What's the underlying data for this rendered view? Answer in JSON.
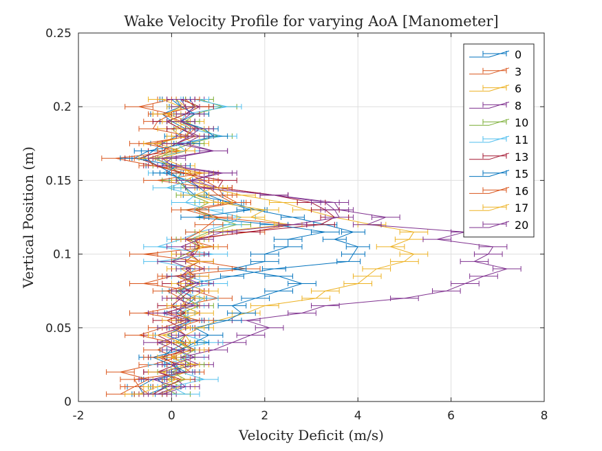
{
  "chart_data": {
    "type": "line",
    "title": "Wake Velocity Profile for varying AoA [Manometer]",
    "xlabel": "Velocity Deficit (m/s)",
    "ylabel": "Vertical Position (m)",
    "xlim": [
      -2,
      8
    ],
    "ylim": [
      0,
      0.25
    ],
    "xticks": [
      "-2",
      "0",
      "2",
      "4",
      "6",
      "8"
    ],
    "yticks": [
      "0",
      "0.05",
      "0.1",
      "0.15",
      "0.2",
      "0.25"
    ],
    "grid": true,
    "legend_position": "top-right",
    "error_bars": "horizontal",
    "y": [
      0.005,
      0.01,
      0.015,
      0.02,
      0.025,
      0.03,
      0.035,
      0.04,
      0.045,
      0.05,
      0.055,
      0.06,
      0.065,
      0.07,
      0.075,
      0.08,
      0.085,
      0.09,
      0.095,
      0.1,
      0.105,
      0.11,
      0.115,
      0.12,
      0.125,
      0.13,
      0.135,
      0.14,
      0.145,
      0.15,
      0.155,
      0.16,
      0.165,
      0.17,
      0.175,
      0.18,
      0.185,
      0.19,
      0.195,
      0.2,
      0.205
    ],
    "series": [
      {
        "name": "0",
        "color": "#0072BD",
        "err": 0.25,
        "x": [
          -0.6,
          -0.7,
          -0.4,
          0.2,
          0.1,
          -0.2,
          0.0,
          0.3,
          -0.1,
          0.2,
          0.4,
          0.1,
          0.3,
          0.5,
          0.2,
          0.4,
          1.3,
          2.2,
          3.8,
          3.9,
          4.0,
          3.5,
          3.9,
          3.3,
          2.6,
          1.8,
          1.3,
          0.5,
          0.3,
          0.2,
          0.0,
          -0.3,
          -0.6,
          -0.4,
          -0.2,
          0.1,
          0.3,
          0.0,
          -0.2,
          0.2,
          0.0
        ]
      },
      {
        "name": "3",
        "color": "#D95319",
        "err": 0.3,
        "x": [
          -1.1,
          -0.8,
          -0.5,
          -1.1,
          -0.4,
          0.1,
          -0.3,
          0.0,
          -0.7,
          -0.2,
          0.3,
          -0.6,
          0.2,
          1.0,
          0.5,
          -0.6,
          0.0,
          1.6,
          0.6,
          -0.6,
          0.9,
          0.3,
          1.7,
          2.6,
          0.9,
          0.3,
          1.3,
          1.0,
          0.8,
          -0.3,
          0.7,
          -0.4,
          -1.2,
          0.2,
          -0.6,
          0.4,
          -0.4,
          -0.3,
          0.0,
          -0.7,
          0.0
        ]
      },
      {
        "name": "6",
        "color": "#EDB120",
        "err": 0.3,
        "x": [
          -0.3,
          0.2,
          -0.1,
          0.3,
          0.5,
          0.0,
          0.2,
          0.4,
          0.3,
          0.6,
          1.0,
          1.6,
          2.0,
          3.1,
          3.3,
          4.0,
          4.2,
          4.4,
          5.0,
          5.2,
          4.7,
          5.1,
          5.2,
          4.3,
          3.5,
          2.9,
          2.4,
          1.5,
          0.8,
          0.6,
          0.4,
          0.2,
          -0.2,
          0.3,
          0.5,
          0.2,
          0.0,
          0.4,
          -0.1,
          0.3,
          0.1
        ]
      },
      {
        "name": "8",
        "color": "#7E2F8E",
        "err": 0.3,
        "x": [
          -0.2,
          0.3,
          0.1,
          -0.3,
          0.6,
          0.2,
          0.9,
          1.3,
          1.7,
          2.1,
          1.6,
          2.8,
          3.3,
          5.0,
          5.9,
          6.3,
          6.7,
          7.2,
          6.5,
          6.8,
          6.9,
          5.7,
          6.3,
          4.2,
          4.6,
          3.6,
          3.5,
          2.2,
          1.0,
          0.4,
          1.0,
          -0.2,
          0.0,
          0.9,
          0.3,
          0.6,
          0.2,
          -0.1,
          0.3,
          0.5,
          0.4
        ]
      },
      {
        "name": "10",
        "color": "#77AC30",
        "err": 0.3,
        "x": [
          0.1,
          -0.2,
          0.3,
          0.0,
          0.4,
          0.2,
          0.5,
          0.1,
          0.3,
          0.0,
          0.4,
          0.2,
          0.6,
          0.3,
          0.1,
          0.5,
          0.2,
          0.4,
          0.0,
          0.3,
          0.6,
          0.4,
          0.8,
          1.4,
          0.9,
          0.5,
          0.8,
          0.4,
          0.3,
          0.1,
          0.2,
          -0.1,
          -0.3,
          0.0,
          0.4,
          1.0,
          0.6,
          0.3,
          0.5,
          1.1,
          0.6
        ]
      },
      {
        "name": "11",
        "color": "#4DBEEE",
        "err": 0.3,
        "x": [
          0.3,
          0.0,
          0.7,
          0.2,
          -0.2,
          0.4,
          0.1,
          0.8,
          0.3,
          0.0,
          0.5,
          0.2,
          0.4,
          0.7,
          0.1,
          0.9,
          0.3,
          0.5,
          -0.3,
          0.9,
          -0.3,
          0.2,
          0.6,
          1.2,
          1.5,
          0.8,
          0.3,
          0.5,
          -0.1,
          0.4,
          -0.2,
          0.1,
          -0.4,
          0.3,
          0.1,
          1.1,
          0.4,
          0.2,
          0.3,
          1.2,
          0.5
        ]
      },
      {
        "name": "13",
        "color": "#A2142F",
        "err": 0.3,
        "x": [
          -0.4,
          -0.1,
          0.2,
          -0.3,
          0.1,
          -0.2,
          0.3,
          0.0,
          -0.3,
          0.2,
          -0.1,
          0.3,
          0.0,
          0.2,
          0.4,
          0.1,
          0.5,
          0.3,
          0.6,
          0.4,
          0.6,
          0.5,
          1.6,
          3.2,
          3.5,
          3.3,
          3.0,
          2.2,
          1.0,
          1.1,
          0.2,
          -0.3,
          -0.7,
          -0.2,
          0.1,
          0.5,
          0.2,
          -0.1,
          0.3,
          0.6,
          0.2
        ]
      },
      {
        "name": "15",
        "color": "#0072BD",
        "err": 0.3,
        "x": [
          -0.5,
          -0.1,
          -0.3,
          0.3,
          0.0,
          -0.4,
          0.2,
          0.5,
          0.8,
          0.5,
          1.2,
          1.5,
          1.3,
          1.8,
          2.3,
          2.8,
          2.3,
          1.3,
          2.0,
          2.0,
          2.5,
          2.5,
          3.3,
          2.2,
          0.5,
          1.7,
          1.2,
          0.8,
          0.6,
          0.3,
          -0.1,
          0.1,
          -0.8,
          -0.5,
          0.3,
          0.9,
          0.7,
          0.2,
          0.5,
          0.2,
          0.1
        ]
      },
      {
        "name": "16",
        "color": "#D95319",
        "err": 0.3,
        "x": [
          -0.5,
          -0.7,
          -0.8,
          0.4,
          0.2,
          -0.3,
          0.5,
          0.2,
          0.3,
          0.1,
          0.6,
          -0.1,
          0.3,
          0.2,
          -0.1,
          0.5,
          0.1,
          0.7,
          0.3,
          0.5,
          0.6,
          0.3,
          0.6,
          0.8,
          1.0,
          0.5,
          1.4,
          1.1,
          1.0,
          0.7,
          0.3,
          -0.4,
          -0.5,
          0.0,
          -0.4,
          0.3,
          0.5,
          0.2,
          -0.2,
          0.5,
          0.3
        ]
      },
      {
        "name": "17",
        "color": "#EDB120",
        "err": 0.3,
        "x": [
          -0.7,
          -0.3,
          0.1,
          -0.2,
          0.3,
          0.0,
          0.4,
          0.2,
          -0.2,
          0.4,
          0.1,
          0.6,
          0.2,
          0.4,
          0.7,
          0.3,
          0.5,
          0.2,
          0.6,
          0.3,
          0.7,
          0.5,
          0.9,
          2.5,
          1.7,
          2.0,
          1.0,
          0.5,
          0.9,
          0.3,
          0.6,
          0.0,
          -0.4,
          0.2,
          -0.3,
          0.3,
          0.4,
          0.1,
          -0.1,
          0.2,
          -0.2
        ]
      },
      {
        "name": "20",
        "color": "#7E2F8E",
        "err": 0.3,
        "x": [
          -0.3,
          0.1,
          -0.4,
          0.2,
          0.0,
          0.5,
          0.1,
          -0.3,
          0.3,
          0.0,
          0.4,
          -0.2,
          0.5,
          0.1,
          0.3,
          0.6,
          0.2,
          0.4,
          0.0,
          0.5,
          0.2,
          0.6,
          1.1,
          2.6,
          3.6,
          3.5,
          3.3,
          2.2,
          0.6,
          0.4,
          1.1,
          0.0,
          -0.2,
          0.9,
          0.1,
          0.4,
          0.6,
          0.2,
          0.4,
          0.3,
          0.2
        ]
      }
    ]
  }
}
